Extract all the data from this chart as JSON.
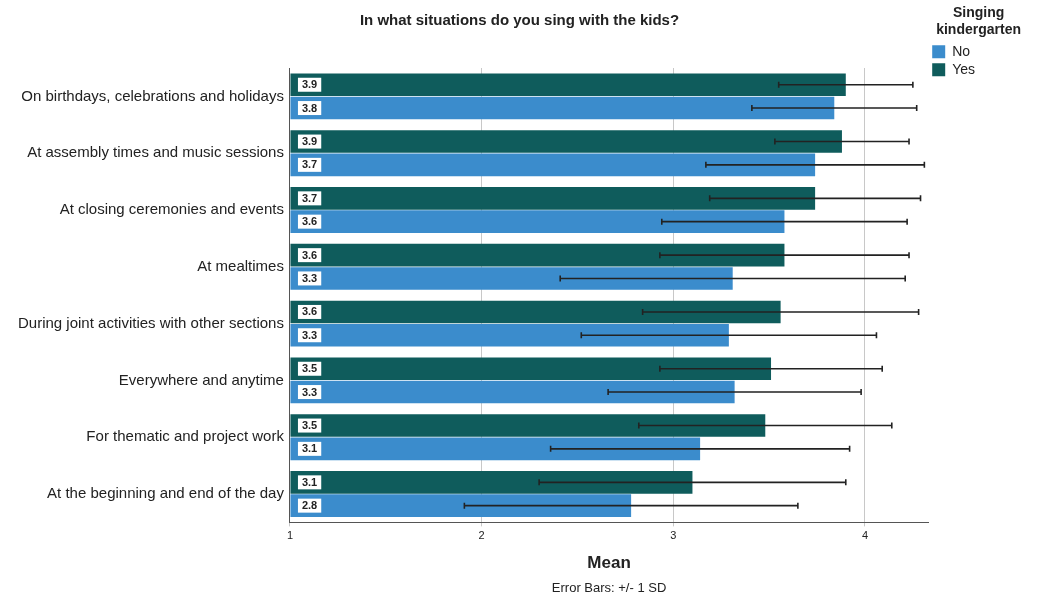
{
  "chart_data": {
    "type": "bar",
    "orientation": "horizontal",
    "title": "In what situations do you sing with the kids?",
    "xlabel": "Mean",
    "legend_title": "Singing kindergarten",
    "legend": "top right",
    "grid": "x",
    "categories": [
      "On birthdays, celebrations and holidays",
      "At assembly times and music sessions",
      "At closing ceremonies and events",
      "At mealtimes",
      "During joint activities with other sections",
      "Everywhere and anytime",
      "For thematic and project work",
      "At the beginning and end of the day"
    ],
    "xlim": [
      1,
      4.33
    ],
    "xticks": [
      1,
      2,
      3,
      4
    ],
    "series": [
      {
        "name": "Yes",
        "color": "#0f5c5c",
        "values": [
          3.9,
          3.88,
          3.74,
          3.58,
          3.56,
          3.51,
          3.48,
          3.1
        ],
        "errors": [
          0.35,
          0.35,
          0.55,
          0.65,
          0.72,
          0.58,
          0.66,
          0.8
        ],
        "value_labels": [
          "3.9",
          "3.9",
          "3.7",
          "3.6",
          "3.6",
          "3.5",
          "3.5",
          "3.1"
        ]
      },
      {
        "name": "No",
        "color": "#3b8ccc",
        "values": [
          3.84,
          3.74,
          3.58,
          3.31,
          3.29,
          3.32,
          3.14,
          2.78
        ],
        "errors": [
          0.43,
          0.57,
          0.64,
          0.9,
          0.77,
          0.66,
          0.78,
          0.87
        ],
        "value_labels": [
          "3.8",
          "3.7",
          "3.6",
          "3.3",
          "3.3",
          "3.3",
          "3.1",
          "2.8"
        ]
      }
    ],
    "annotations": [
      "Error Bars: +/- 1 SD"
    ]
  }
}
